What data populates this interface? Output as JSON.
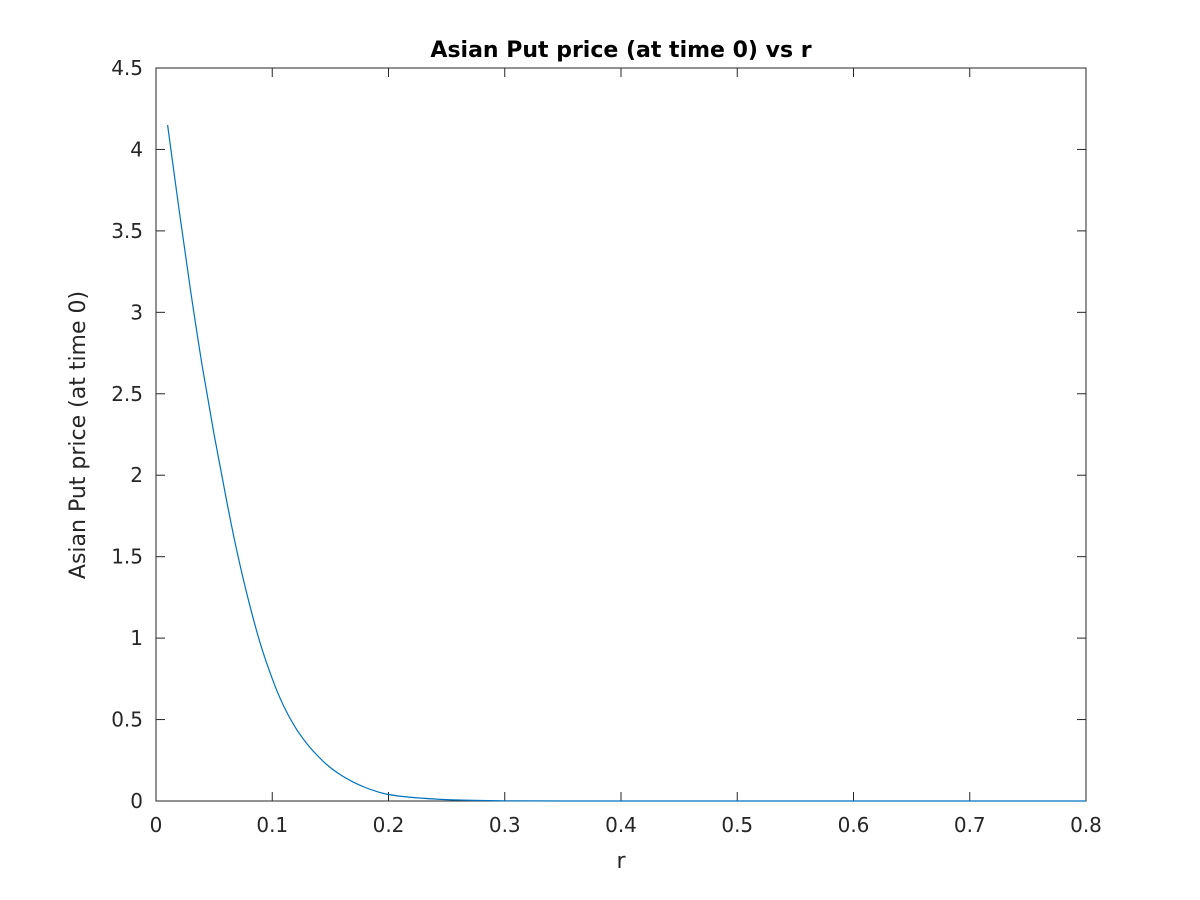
{
  "chart_data": {
    "type": "line",
    "title": "Asian Put price (at time 0) vs r",
    "xlabel": "r",
    "ylabel": "Asian Put price (at time 0)",
    "xlim": [
      0,
      0.8
    ],
    "ylim": [
      0,
      4.5
    ],
    "xticks": [
      "0",
      "0.1",
      "0.2",
      "0.3",
      "0.4",
      "0.5",
      "0.6",
      "0.7",
      "0.8"
    ],
    "yticks": [
      "0",
      "0.5",
      "1",
      "1.5",
      "2",
      "2.5",
      "3",
      "3.5",
      "4",
      "4.5"
    ],
    "grid": false,
    "colors": {
      "series": "#0072bd",
      "axes": "#262626"
    },
    "series": [
      {
        "x": [
          0.01,
          0.02,
          0.03,
          0.04,
          0.05,
          0.06,
          0.07,
          0.08,
          0.09,
          0.1,
          0.11,
          0.12,
          0.13,
          0.14,
          0.15,
          0.16,
          0.17,
          0.18,
          0.19,
          0.2,
          0.22,
          0.24,
          0.26,
          0.28,
          0.3,
          0.32,
          0.35,
          0.4,
          0.45,
          0.5,
          0.55,
          0.6,
          0.65,
          0.7,
          0.75,
          0.8
        ],
        "y": [
          4.15,
          3.62,
          3.12,
          2.66,
          2.25,
          1.87,
          1.52,
          1.22,
          0.96,
          0.75,
          0.58,
          0.45,
          0.35,
          0.27,
          0.205,
          0.155,
          0.115,
          0.083,
          0.058,
          0.04,
          0.022,
          0.012,
          0.006,
          0.003,
          0.0015,
          0.0008,
          0.0003,
          0.0001,
          0,
          0,
          0,
          0,
          0,
          0,
          0,
          0
        ]
      }
    ]
  }
}
